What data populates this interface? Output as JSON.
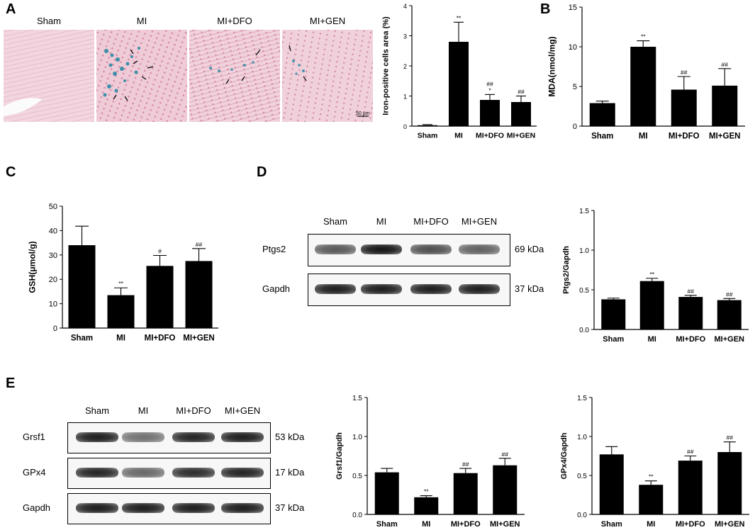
{
  "panels": {
    "A": {
      "letter": "A",
      "micrographs": [
        "Sham",
        "MI",
        "MI+DFO",
        "MI+GEN"
      ],
      "scale_bar": "50 µm"
    },
    "B": {
      "letter": "B"
    },
    "C": {
      "letter": "C"
    },
    "D": {
      "letter": "D",
      "lanes": [
        "Sham",
        "MI",
        "MI+DFO",
        "MI+GEN"
      ],
      "rows": [
        {
          "name": "Ptgs2",
          "kda": "69 kDa",
          "intensity": [
            0.6,
            1.0,
            0.65,
            0.55
          ]
        },
        {
          "name": "Gapdh",
          "kda": "37 kDa",
          "intensity": [
            0.95,
            0.95,
            0.95,
            0.95
          ]
        }
      ]
    },
    "E": {
      "letter": "E",
      "lanes": [
        "Sham",
        "MI",
        "MI+DFO",
        "MI+GEN"
      ],
      "rows": [
        {
          "name": "Grsf1",
          "kda": "53 kDa",
          "intensity": [
            0.95,
            0.45,
            0.9,
            0.95
          ]
        },
        {
          "name": "GPx4",
          "kda": "17 kDa",
          "intensity": [
            0.9,
            0.5,
            0.85,
            0.9
          ]
        },
        {
          "name": "Gapdh",
          "kda": "37 kDa",
          "intensity": [
            0.95,
            0.95,
            0.95,
            0.95
          ]
        }
      ]
    }
  },
  "chart_data": [
    {
      "id": "A-iron",
      "type": "bar",
      "categories": [
        "Sham",
        "MI",
        "MI+DFO",
        "MI+GEN"
      ],
      "values": [
        0.03,
        2.8,
        0.87,
        0.8
      ],
      "errors": [
        0.02,
        0.65,
        0.18,
        0.2
      ],
      "annotations": [
        [
          ""
        ],
        [
          "**"
        ],
        [
          "##",
          "*"
        ],
        [
          "##"
        ]
      ],
      "ylabel": "Iron-positive cells area (%)",
      "ylim": [
        0,
        4
      ],
      "yticks": [
        "0",
        "1",
        "2",
        "3",
        "4"
      ],
      "tick_values": [
        0,
        1,
        2,
        3,
        4
      ]
    },
    {
      "id": "B-mda",
      "type": "bar",
      "categories": [
        "Sham",
        "MI",
        "MI+DFO",
        "MI+GEN"
      ],
      "values": [
        2.9,
        10.0,
        4.6,
        5.1
      ],
      "errors": [
        0.25,
        0.75,
        1.65,
        2.15
      ],
      "annotations": [
        [
          ""
        ],
        [
          "**"
        ],
        [
          "##"
        ],
        [
          "##"
        ]
      ],
      "ylabel": "MDA(nmol/mg)",
      "ylim": [
        0,
        15
      ],
      "yticks": [
        "0",
        "5",
        "10",
        "15"
      ],
      "tick_values": [
        0,
        5,
        10,
        15
      ]
    },
    {
      "id": "C-gsh",
      "type": "bar",
      "categories": [
        "Sham",
        "MI",
        "MI+DFO",
        "MI+GEN"
      ],
      "values": [
        34,
        13.5,
        25.5,
        27.5
      ],
      "errors": [
        7.8,
        3.0,
        4.3,
        5.1
      ],
      "annotations": [
        [
          ""
        ],
        [
          "**"
        ],
        [
          "#"
        ],
        [
          "##"
        ]
      ],
      "ylabel": "GSH(μmol/g)",
      "ylim": [
        0,
        50
      ],
      "yticks": [
        "0",
        "10",
        "20",
        "30",
        "40",
        "50"
      ],
      "tick_values": [
        0,
        10,
        20,
        30,
        40,
        50
      ]
    },
    {
      "id": "D-ptgs2",
      "type": "bar",
      "categories": [
        "Sham",
        "MI",
        "MI+DFO",
        "MI+GEN"
      ],
      "values": [
        0.38,
        0.61,
        0.41,
        0.37
      ],
      "errors": [
        0.015,
        0.035,
        0.02,
        0.02
      ],
      "annotations": [
        [
          ""
        ],
        [
          "**"
        ],
        [
          "##"
        ],
        [
          "##"
        ]
      ],
      "ylabel": "Ptgs2/Gapdh",
      "ylim": [
        0,
        1.5
      ],
      "yticks": [
        "0.0",
        "0.5",
        "1.0",
        "1.5"
      ],
      "tick_values": [
        0,
        0.5,
        1.0,
        1.5
      ]
    },
    {
      "id": "E-grsf1",
      "type": "bar",
      "categories": [
        "Sham",
        "MI",
        "MI+DFO",
        "MI+GEN"
      ],
      "values": [
        0.54,
        0.22,
        0.53,
        0.63
      ],
      "errors": [
        0.05,
        0.02,
        0.06,
        0.09
      ],
      "annotations": [
        [
          ""
        ],
        [
          "**"
        ],
        [
          "##"
        ],
        [
          "##"
        ]
      ],
      "ylabel": "Grsf1/Gapdh",
      "ylim": [
        0,
        1.5
      ],
      "yticks": [
        "0.0",
        "0.5",
        "1.0",
        "1.5"
      ],
      "tick_values": [
        0,
        0.5,
        1.0,
        1.5
      ]
    },
    {
      "id": "E-gpx4",
      "type": "bar",
      "categories": [
        "Sham",
        "MI",
        "MI+DFO",
        "MI+GEN"
      ],
      "values": [
        0.77,
        0.38,
        0.69,
        0.8
      ],
      "errors": [
        0.1,
        0.05,
        0.06,
        0.13
      ],
      "annotations": [
        [
          ""
        ],
        [
          "**"
        ],
        [
          "##"
        ],
        [
          "##"
        ]
      ],
      "ylabel": "GPx4/Gapdh",
      "ylim": [
        0,
        1.5
      ],
      "yticks": [
        "0.0",
        "0.5",
        "1.0",
        "1.5"
      ],
      "tick_values": [
        0,
        0.5,
        1.0,
        1.5
      ]
    }
  ]
}
